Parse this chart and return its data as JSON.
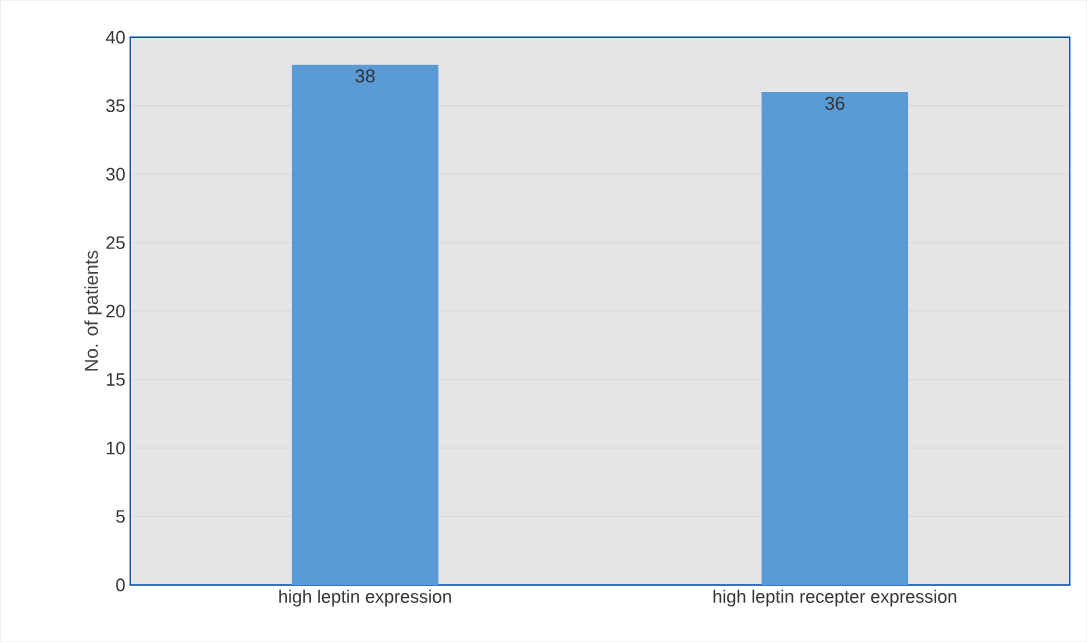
{
  "chart_data": {
    "type": "bar",
    "ylabel": "No. of patients",
    "categories": [
      "high leptin expression",
      "high leptin recepter expression"
    ],
    "values": [
      38,
      36
    ],
    "color": "#5b9bd5",
    "ylim": [
      0,
      40
    ],
    "yticks": [
      0,
      5,
      10,
      15,
      20,
      25,
      30,
      35,
      40
    ],
    "grid": "y",
    "data_labels": true
  }
}
